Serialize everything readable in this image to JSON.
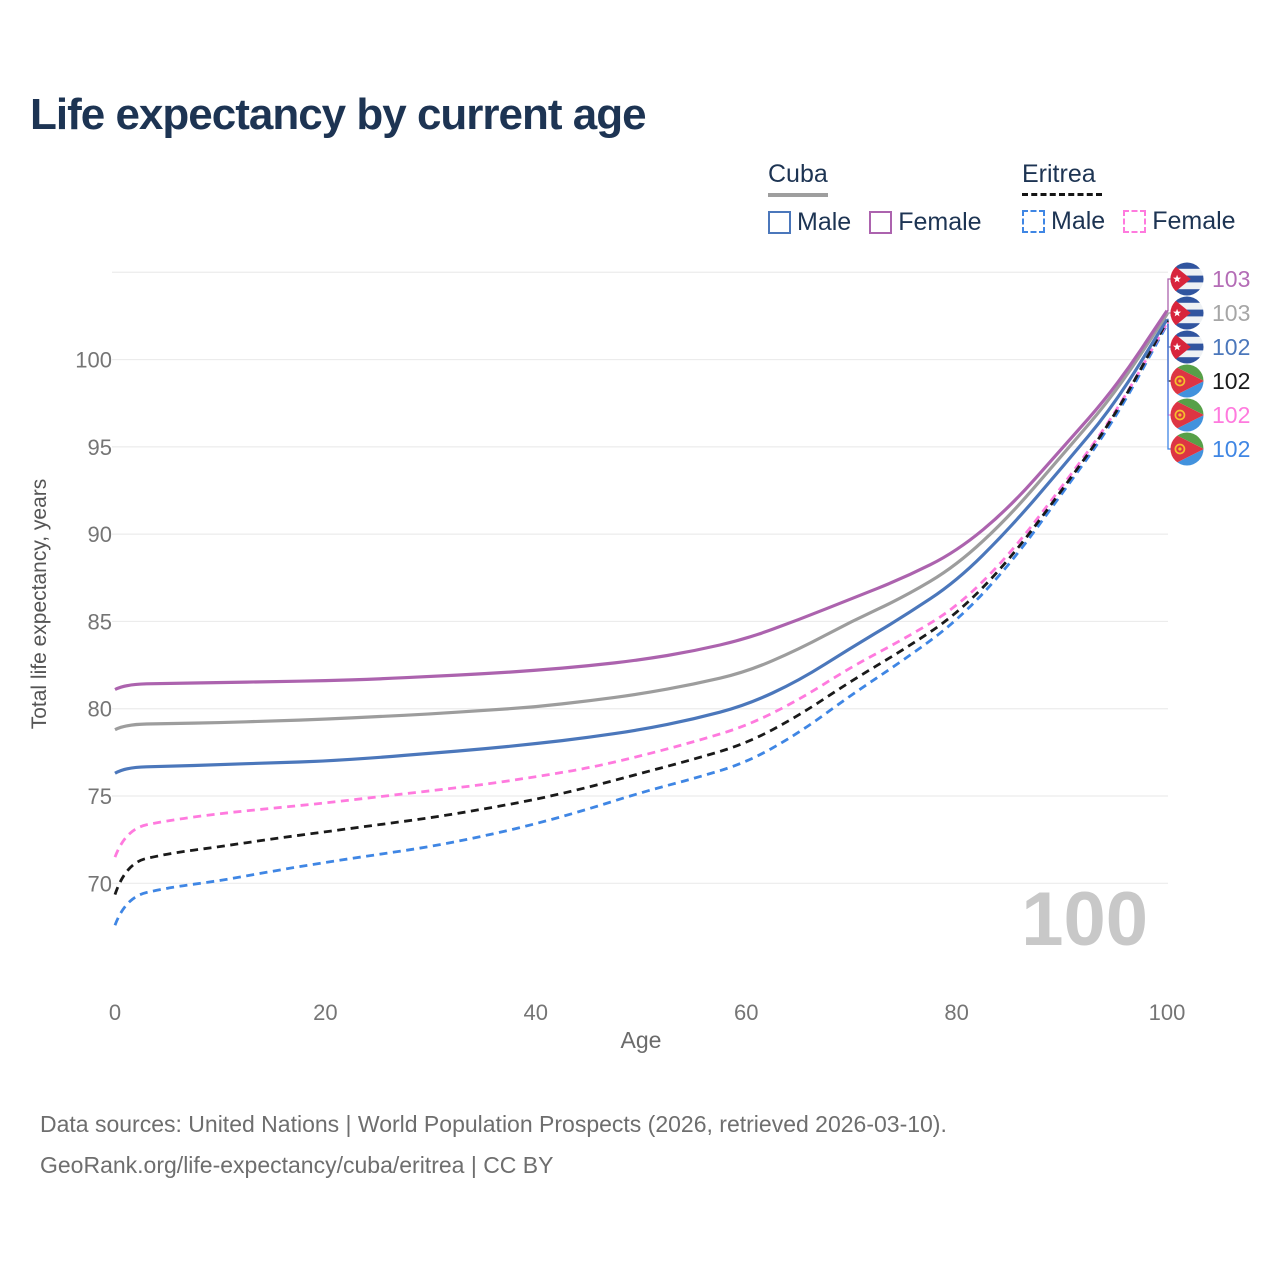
{
  "title": "Life expectancy by current age",
  "legend": {
    "groups": [
      {
        "label": "Cuba",
        "line_style": "solid",
        "underline_color": "#9e9e9e",
        "items": [
          {
            "label": "Male",
            "color": "#4b77bb"
          },
          {
            "label": "Female",
            "color": "#ac63ae"
          }
        ]
      },
      {
        "label": "Eritrea",
        "line_style": "dashed",
        "underline_color": "#141414",
        "items": [
          {
            "label": "Male",
            "color": "#3f86e4"
          },
          {
            "label": "Female",
            "color": "#ff7ade"
          }
        ]
      }
    ]
  },
  "chart_data": {
    "type": "line",
    "title": "Life expectancy by current age",
    "xlabel": "Age",
    "ylabel": "Total life expectancy, years",
    "x_ticks": [
      0,
      20,
      40,
      60,
      80,
      100
    ],
    "y_ticks": [
      70,
      75,
      80,
      85,
      90,
      95,
      100
    ],
    "y_gridlines": [
      70,
      75,
      80,
      85,
      90,
      95,
      100,
      105
    ],
    "xlim": [
      0,
      100
    ],
    "ylim": [
      66,
      105
    ],
    "grid": "horizontal-only",
    "watermark": "100",
    "x": [
      0,
      1,
      5,
      10,
      15,
      20,
      25,
      30,
      35,
      40,
      45,
      50,
      55,
      60,
      65,
      70,
      75,
      80,
      85,
      90,
      95,
      100
    ],
    "series": [
      {
        "name": "Cuba Female",
        "color": "#ac63ae",
        "dashed": false,
        "end_label": "103",
        "values": [
          81.1,
          81.4,
          81.45,
          81.5,
          81.55,
          81.6,
          81.7,
          81.85,
          82.0,
          82.2,
          82.45,
          82.8,
          83.3,
          84.0,
          85.1,
          86.3,
          87.5,
          89.0,
          91.5,
          94.9,
          98.3,
          102.8
        ]
      },
      {
        "name": "Cuba Both sexes",
        "color": "#9d9d9d",
        "dashed": false,
        "end_label": "103",
        "values": [
          78.8,
          79.1,
          79.15,
          79.2,
          79.3,
          79.4,
          79.55,
          79.7,
          79.9,
          80.1,
          80.45,
          80.85,
          81.4,
          82.1,
          83.4,
          85.0,
          86.4,
          88.2,
          91.0,
          94.5,
          98.0,
          102.6
        ]
      },
      {
        "name": "Cuba Male",
        "color": "#4b77bb",
        "dashed": false,
        "end_label": "102",
        "values": [
          76.3,
          76.65,
          76.7,
          76.8,
          76.9,
          77.0,
          77.2,
          77.45,
          77.7,
          78.0,
          78.35,
          78.8,
          79.4,
          80.2,
          81.6,
          83.5,
          85.3,
          87.3,
          90.3,
          93.8,
          97.4,
          102.3
        ]
      },
      {
        "name": "Eritrea Both sexes",
        "color": "#1a1a1a",
        "dashed": true,
        "end_label": "102",
        "values": [
          69.35,
          71.15,
          71.7,
          72.1,
          72.55,
          72.95,
          73.35,
          73.75,
          74.25,
          74.8,
          75.5,
          76.3,
          77.1,
          78.0,
          79.6,
          81.6,
          83.4,
          85.4,
          88.5,
          92.5,
          96.7,
          102.2
        ]
      },
      {
        "name": "Eritrea Female",
        "color": "#ff7ade",
        "dashed": true,
        "end_label": "102",
        "values": [
          71.5,
          73.1,
          73.6,
          74.0,
          74.3,
          74.6,
          74.95,
          75.3,
          75.65,
          76.1,
          76.6,
          77.3,
          78.1,
          79.0,
          80.5,
          82.4,
          84.0,
          85.8,
          88.8,
          92.7,
          96.8,
          102.1
        ]
      },
      {
        "name": "Eritrea Male",
        "color": "#3f86e4",
        "dashed": true,
        "end_label": "102",
        "values": [
          67.6,
          69.2,
          69.75,
          70.15,
          70.7,
          71.2,
          71.65,
          72.1,
          72.7,
          73.4,
          74.25,
          75.2,
          76.0,
          76.9,
          78.6,
          80.8,
          82.8,
          85.0,
          88.2,
          92.3,
          96.5,
          102.0
        ]
      }
    ]
  },
  "right_labels": [
    {
      "flag": "cuba",
      "value": "103",
      "series": "Cuba Female",
      "color": "#b46cb6"
    },
    {
      "flag": "cuba",
      "value": "103",
      "series": "Cuba Both sexes",
      "color": "#a6a6a6"
    },
    {
      "flag": "cuba",
      "value": "102",
      "series": "Cuba Male",
      "color": "#4b77bb"
    },
    {
      "flag": "eritrea",
      "value": "102",
      "series": "Eritrea Both sexes",
      "color": "#1a1a1a"
    },
    {
      "flag": "eritrea",
      "value": "102",
      "series": "Eritrea Female",
      "color": "#ff7ade"
    },
    {
      "flag": "eritrea",
      "value": "102",
      "series": "Eritrea Male",
      "color": "#3f86e4"
    }
  ],
  "footer": {
    "line1": "Data sources: United Nations | World Population Prospects (2026, retrieved 2026-03-10).",
    "line2": "GeoRank.org/life-expectancy/cuba/eritrea | CC BY"
  }
}
